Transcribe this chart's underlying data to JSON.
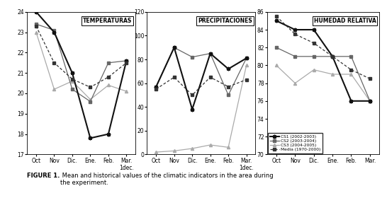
{
  "x_labels_12": [
    "Oct",
    "Nov",
    "Dic.",
    "Ene.",
    "Feb.",
    "Mar.\n1dec."
  ],
  "x_labels_3": [
    "Oct",
    "Nov",
    "Dic.",
    "Ene.",
    "Feb.",
    "Mar."
  ],
  "temp_cs1": [
    24.0,
    23.0,
    21.0,
    17.8,
    18.0,
    21.6
  ],
  "temp_cs2": [
    23.4,
    23.1,
    20.2,
    19.6,
    21.5,
    21.6
  ],
  "temp_cs3": [
    23.0,
    20.2,
    20.6,
    19.7,
    20.4,
    20.1
  ],
  "temp_media": [
    23.3,
    21.5,
    20.7,
    20.3,
    20.8,
    21.5
  ],
  "prec_cs1": [
    57.0,
    90.0,
    38.0,
    85.0,
    72.0,
    81.0
  ],
  "prec_cs2": [
    57.0,
    90.0,
    82.0,
    85.0,
    50.0,
    81.0
  ],
  "prec_cs3": [
    2.0,
    3.0,
    5.0,
    8.0,
    6.0,
    75.0
  ],
  "prec_media": [
    55.0,
    65.0,
    50.0,
    65.0,
    57.0,
    63.0
  ],
  "hr_cs1": [
    85.0,
    84.0,
    84.0,
    81.0,
    76.0,
    76.0
  ],
  "hr_cs2": [
    82.0,
    81.0,
    81.0,
    81.0,
    81.0,
    76.0
  ],
  "hr_cs3": [
    80.0,
    78.0,
    79.5,
    79.0,
    79.0,
    76.0
  ],
  "hr_media": [
    85.5,
    83.5,
    82.5,
    81.0,
    79.5,
    78.5
  ],
  "color_cs1": "#111111",
  "color_cs2": "#666666",
  "color_cs3": "#aaaaaa",
  "color_media": "#333333",
  "title_temp": "TEMPERATURAS",
  "title_prec": "PRECIPITACIONES",
  "title_hr": "HUMEDAD RELATIVA",
  "ylim_temp": [
    17,
    24
  ],
  "ylim_prec": [
    0,
    120
  ],
  "ylim_hr": [
    70,
    86
  ],
  "yticks_temp": [
    17,
    18,
    19,
    20,
    21,
    22,
    23,
    24
  ],
  "yticks_prec": [
    0,
    20,
    40,
    60,
    80,
    100,
    120
  ],
  "yticks_hr": [
    70,
    72,
    74,
    76,
    78,
    80,
    82,
    84,
    86
  ],
  "legend_cs1": "CS1 (2002-2003)",
  "legend_cs2": "CS2 (2003-2004)",
  "legend_cs3": "CS3 (2004-2005)",
  "legend_media": "Media (1970-2000)",
  "fig_caption_bold": "FIGURE 1.",
  "fig_caption_rest": " Mean and historical values of the climatic indicators in the area during\nthe experiment."
}
